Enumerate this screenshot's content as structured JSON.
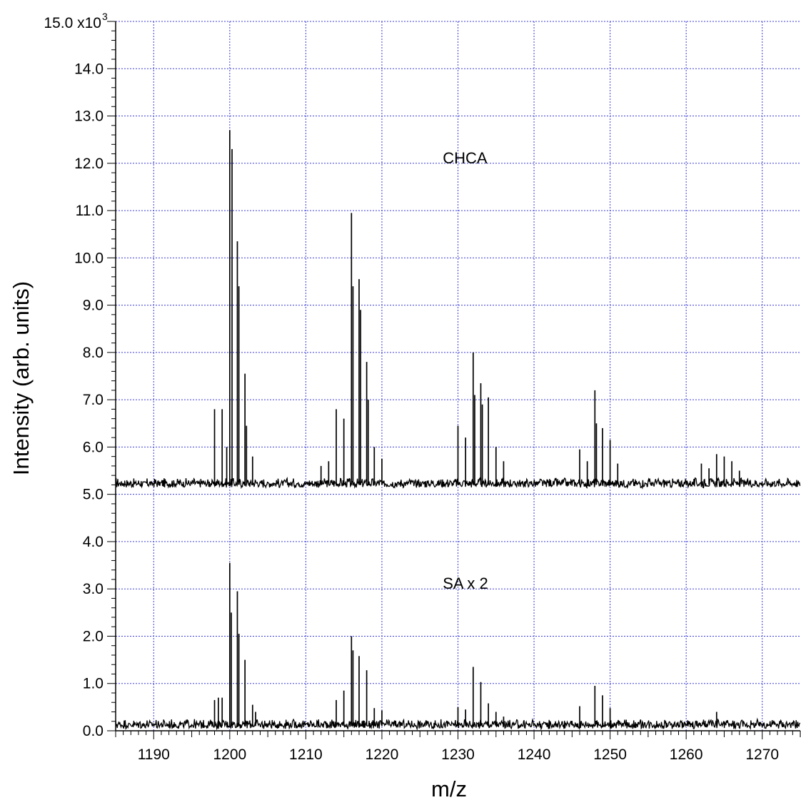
{
  "chart_data": {
    "type": "line",
    "xlabel": "m/z",
    "ylabel": "Intensity (arb. units)",
    "xlim": [
      1185,
      1275
    ],
    "ylim": [
      0,
      15000
    ],
    "y_scale_label": "15.0 x10",
    "y_scale_exp": "3",
    "x_ticks": [
      1190,
      1200,
      1210,
      1220,
      1230,
      1240,
      1250,
      1260,
      1270
    ],
    "x_tick_labels": [
      "1190",
      "1200",
      "1210",
      "1220",
      "1230",
      "1240",
      "1250",
      "1260",
      "1270"
    ],
    "y_ticks": [
      0,
      1000,
      2000,
      3000,
      4000,
      5000,
      6000,
      7000,
      8000,
      9000,
      10000,
      11000,
      12000,
      13000,
      14000
    ],
    "y_tick_labels": [
      "0.0",
      "1.0",
      "2.0",
      "3.0",
      "4.0",
      "5.0",
      "6.0",
      "7.0",
      "8.0",
      "9.0",
      "10.0",
      "11.0",
      "12.0",
      "13.0",
      "14.0"
    ],
    "grid": true,
    "line_color": "#000000",
    "grid_color": "#3b3bd6",
    "series": [
      {
        "label": "CHCA",
        "label_position": [
          1228,
          12000
        ],
        "baseline": 5200,
        "noise": 150,
        "peaks": [
          [
            1198,
            6800
          ],
          [
            1199,
            6800
          ],
          [
            1199.6,
            6000
          ],
          [
            1200,
            12700
          ],
          [
            1200.3,
            12300
          ],
          [
            1201,
            10350
          ],
          [
            1201.2,
            9400
          ],
          [
            1202,
            7550
          ],
          [
            1202.2,
            6450
          ],
          [
            1203,
            5800
          ],
          [
            1212,
            5600
          ],
          [
            1213,
            5700
          ],
          [
            1214,
            6800
          ],
          [
            1215,
            6600
          ],
          [
            1216,
            10950
          ],
          [
            1216.2,
            9400
          ],
          [
            1217,
            9550
          ],
          [
            1217.2,
            8900
          ],
          [
            1218,
            7800
          ],
          [
            1218.2,
            7000
          ],
          [
            1219,
            6000
          ],
          [
            1220,
            5750
          ],
          [
            1230,
            6450
          ],
          [
            1231,
            6200
          ],
          [
            1232,
            8000
          ],
          [
            1232.2,
            7100
          ],
          [
            1233,
            7350
          ],
          [
            1233.2,
            6900
          ],
          [
            1234,
            7050
          ],
          [
            1235,
            6000
          ],
          [
            1236,
            5700
          ],
          [
            1246,
            5950
          ],
          [
            1247,
            5700
          ],
          [
            1248,
            7200
          ],
          [
            1248.2,
            6500
          ],
          [
            1249,
            6400
          ],
          [
            1250,
            6150
          ],
          [
            1251,
            5650
          ],
          [
            1262,
            5650
          ],
          [
            1263,
            5550
          ],
          [
            1264,
            5850
          ],
          [
            1265,
            5800
          ],
          [
            1266,
            5700
          ],
          [
            1267,
            5500
          ]
        ]
      },
      {
        "label": "SA x 2",
        "label_position": [
          1228,
          3000
        ],
        "baseline": 100,
        "noise": 150,
        "peaks": [
          [
            1198,
            650
          ],
          [
            1198.5,
            700
          ],
          [
            1199,
            700
          ],
          [
            1200,
            3550
          ],
          [
            1200.2,
            2500
          ],
          [
            1201,
            2950
          ],
          [
            1201.2,
            2050
          ],
          [
            1202,
            1500
          ],
          [
            1203,
            550
          ],
          [
            1203.4,
            400
          ],
          [
            1214,
            650
          ],
          [
            1215,
            850
          ],
          [
            1216,
            2000
          ],
          [
            1216.2,
            1700
          ],
          [
            1217,
            1580
          ],
          [
            1218,
            1280
          ],
          [
            1219,
            480
          ],
          [
            1220,
            430
          ],
          [
            1230,
            500
          ],
          [
            1231,
            450
          ],
          [
            1232,
            1350
          ],
          [
            1233,
            1030
          ],
          [
            1234,
            580
          ],
          [
            1235,
            400
          ],
          [
            1236,
            300
          ],
          [
            1246,
            520
          ],
          [
            1248,
            950
          ],
          [
            1249,
            750
          ],
          [
            1250,
            480
          ],
          [
            1264,
            400
          ]
        ]
      }
    ]
  }
}
